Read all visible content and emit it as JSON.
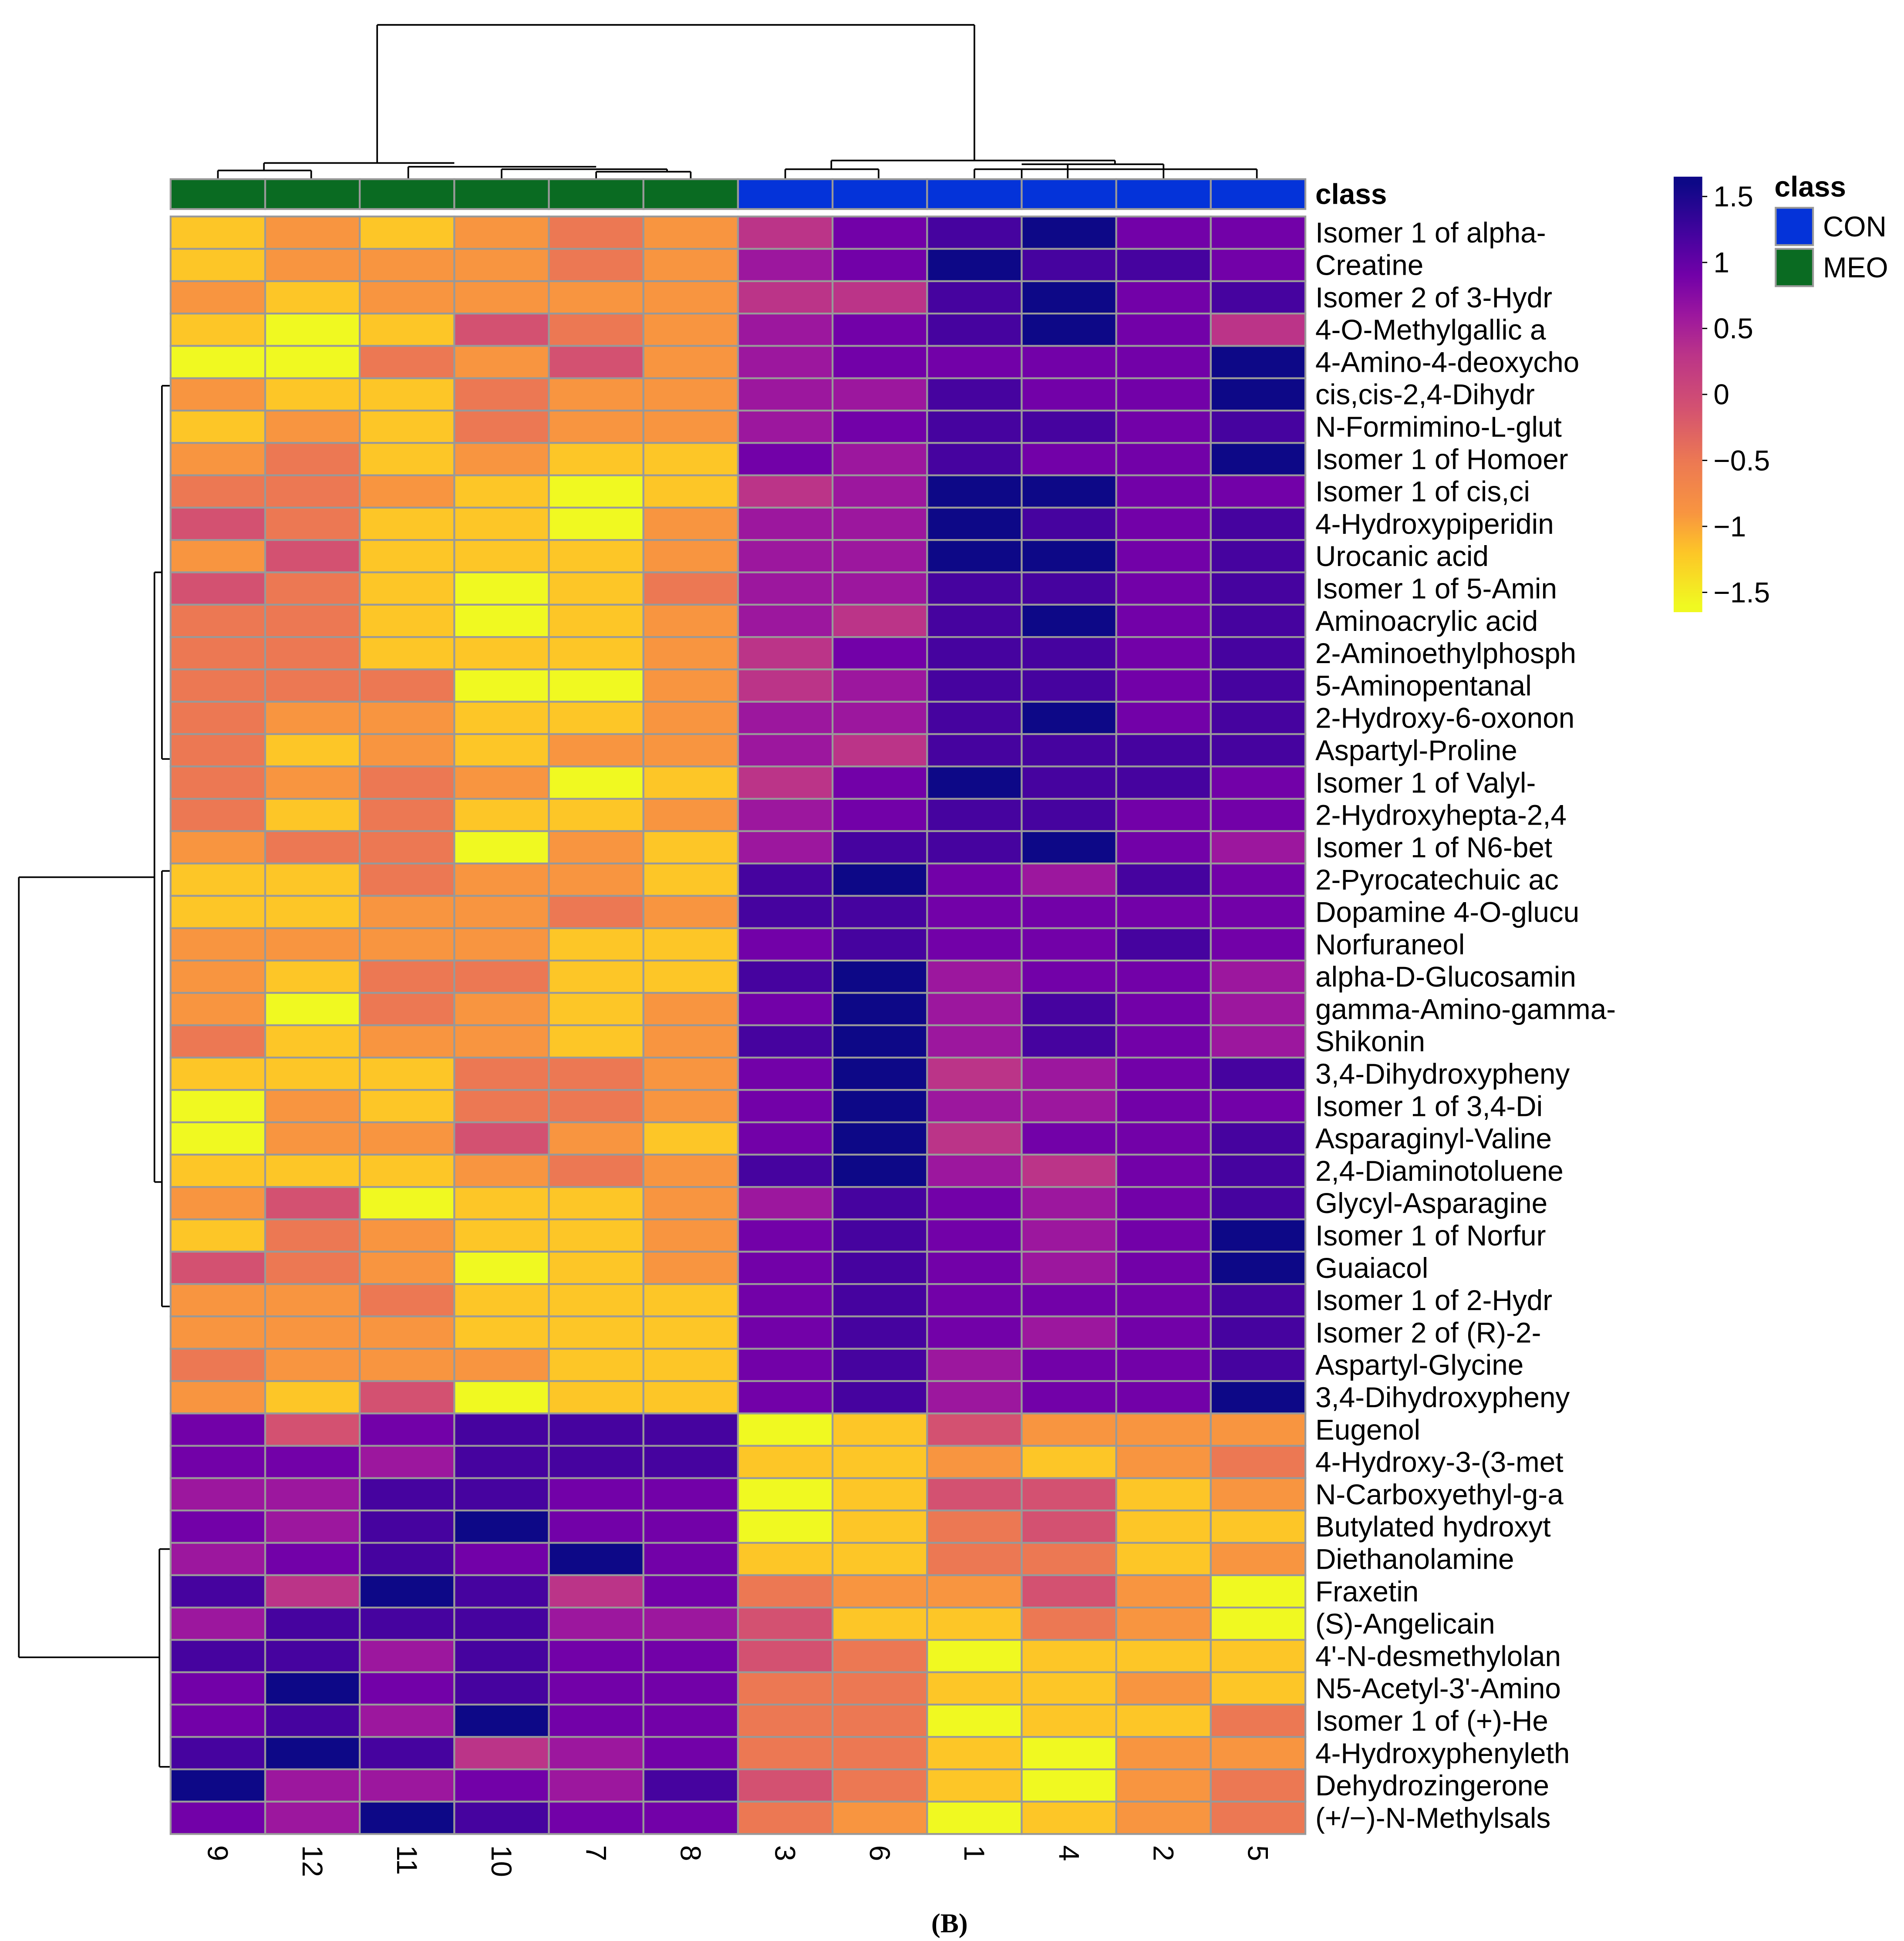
{
  "chart_data": {
    "type": "heatmap",
    "caption": "(B)",
    "columns": [
      "9",
      "12",
      "11",
      "10",
      "7",
      "8",
      "3",
      "6",
      "1",
      "4",
      "2",
      "5"
    ],
    "column_class": [
      "MEO",
      "MEO",
      "MEO",
      "MEO",
      "MEO",
      "MEO",
      "CON",
      "CON",
      "CON",
      "CON",
      "CON",
      "CON"
    ],
    "class_annotation_label": "class",
    "class_legend": {
      "title": "class",
      "entries": [
        {
          "name": "CON",
          "color": "#0433d9"
        },
        {
          "name": "MEO",
          "color": "#0a6b22"
        }
      ]
    },
    "colorbar": {
      "ticks": [
        "1.5",
        "1",
        "0.5",
        "0",
        "−0.5",
        "−1",
        "−1.5"
      ],
      "tick_values": [
        1.5,
        1,
        0.5,
        0,
        -0.5,
        -1,
        -1.5
      ],
      "range": [
        -1.65,
        1.65
      ],
      "stops": [
        {
          "v": -1.6,
          "color": "#f0f921"
        },
        {
          "v": -1.2,
          "color": "#fdc627"
        },
        {
          "v": -0.9,
          "color": "#f89540"
        },
        {
          "v": -0.5,
          "color": "#ec7853"
        },
        {
          "v": -0.1,
          "color": "#d35171"
        },
        {
          "v": 0.3,
          "color": "#bb3488"
        },
        {
          "v": 0.6,
          "color": "#9c179e"
        },
        {
          "v": 0.9,
          "color": "#7201a8"
        },
        {
          "v": 1.2,
          "color": "#46039f"
        },
        {
          "v": 1.6,
          "color": "#0d0887"
        }
      ]
    },
    "rows": [
      {
        "name": "Isomer 1 of alpha-",
        "values": [
          -1.2,
          -0.9,
          -1.2,
          -0.9,
          -0.5,
          -0.9,
          0.3,
          0.9,
          1.2,
          1.6,
          0.9,
          0.9
        ]
      },
      {
        "name": "Creatine",
        "values": [
          -1.2,
          -0.9,
          -0.9,
          -0.9,
          -0.5,
          -0.9,
          0.6,
          0.9,
          1.6,
          1.2,
          1.2,
          0.9
        ]
      },
      {
        "name": "Isomer 2 of 3-Hydr",
        "values": [
          -0.9,
          -1.2,
          -0.9,
          -0.9,
          -0.9,
          -0.9,
          0.3,
          0.3,
          1.2,
          1.6,
          0.9,
          1.2
        ]
      },
      {
        "name": "4-O-Methylgallic a",
        "values": [
          -1.2,
          -1.6,
          -1.2,
          -0.1,
          -0.5,
          -0.9,
          0.6,
          0.9,
          1.2,
          1.6,
          0.9,
          0.3
        ]
      },
      {
        "name": "4-Amino-4-deoxycho",
        "values": [
          -1.6,
          -1.6,
          -0.5,
          -0.9,
          -0.1,
          -0.9,
          0.6,
          0.9,
          0.9,
          0.9,
          0.9,
          1.6
        ]
      },
      {
        "name": "cis,cis-2,4-Dihydr",
        "values": [
          -0.9,
          -1.2,
          -1.2,
          -0.5,
          -0.9,
          -0.9,
          0.6,
          0.6,
          1.2,
          0.9,
          0.9,
          1.6
        ]
      },
      {
        "name": "N-Formimino-L-glut",
        "values": [
          -1.2,
          -0.9,
          -1.2,
          -0.5,
          -0.9,
          -0.9,
          0.6,
          0.9,
          1.2,
          1.2,
          0.9,
          1.2
        ]
      },
      {
        "name": "Isomer 1 of Homoer",
        "values": [
          -0.9,
          -0.5,
          -1.2,
          -0.9,
          -1.2,
          -1.2,
          0.9,
          0.6,
          1.2,
          0.9,
          0.9,
          1.6
        ]
      },
      {
        "name": "Isomer 1 of cis,ci",
        "values": [
          -0.5,
          -0.5,
          -0.9,
          -1.2,
          -1.6,
          -1.2,
          0.3,
          0.6,
          1.6,
          1.6,
          0.9,
          0.9
        ]
      },
      {
        "name": "4-Hydroxypiperidin",
        "values": [
          -0.1,
          -0.5,
          -1.2,
          -1.2,
          -1.6,
          -0.9,
          0.6,
          0.6,
          1.6,
          1.2,
          0.9,
          1.2
        ]
      },
      {
        "name": "Urocanic acid",
        "values": [
          -0.9,
          -0.1,
          -1.2,
          -1.2,
          -1.2,
          -0.9,
          0.6,
          0.6,
          1.6,
          1.6,
          0.9,
          1.2
        ]
      },
      {
        "name": "Isomer 1 of 5-Amin",
        "values": [
          -0.1,
          -0.5,
          -1.2,
          -1.6,
          -1.2,
          -0.5,
          0.6,
          0.6,
          1.2,
          1.2,
          0.9,
          1.2
        ]
      },
      {
        "name": "Aminoacrylic acid",
        "values": [
          -0.5,
          -0.5,
          -1.2,
          -1.6,
          -1.2,
          -0.9,
          0.6,
          0.3,
          1.2,
          1.6,
          0.9,
          1.2
        ]
      },
      {
        "name": "2-Aminoethylphosph",
        "values": [
          -0.5,
          -0.5,
          -1.2,
          -1.2,
          -1.2,
          -0.9,
          0.3,
          0.9,
          1.2,
          1.2,
          0.9,
          1.2
        ]
      },
      {
        "name": "5-Aminopentanal",
        "values": [
          -0.5,
          -0.5,
          -0.5,
          -1.6,
          -1.6,
          -0.9,
          0.3,
          0.6,
          1.2,
          1.2,
          0.9,
          1.2
        ]
      },
      {
        "name": "2-Hydroxy-6-oxonon",
        "values": [
          -0.5,
          -0.9,
          -0.9,
          -1.2,
          -1.2,
          -0.9,
          0.6,
          0.6,
          1.2,
          1.6,
          0.9,
          1.2
        ]
      },
      {
        "name": "Aspartyl-Proline",
        "values": [
          -0.5,
          -1.2,
          -0.9,
          -1.2,
          -0.9,
          -0.9,
          0.6,
          0.3,
          1.2,
          1.2,
          1.2,
          1.2
        ]
      },
      {
        "name": "Isomer 1 of Valyl-",
        "values": [
          -0.5,
          -0.9,
          -0.5,
          -0.9,
          -1.6,
          -1.2,
          0.3,
          0.9,
          1.6,
          1.2,
          1.2,
          0.9
        ]
      },
      {
        "name": "2-Hydroxyhepta-2,4",
        "values": [
          -0.5,
          -1.2,
          -0.5,
          -1.2,
          -1.2,
          -0.9,
          0.6,
          0.9,
          1.2,
          1.2,
          0.9,
          0.9
        ]
      },
      {
        "name": "Isomer 1 of N6-bet",
        "values": [
          -0.9,
          -0.5,
          -0.5,
          -1.6,
          -0.9,
          -1.2,
          0.6,
          1.2,
          1.2,
          1.6,
          0.9,
          0.6
        ]
      },
      {
        "name": "2-Pyrocatechuic ac",
        "values": [
          -1.2,
          -1.2,
          -0.5,
          -0.9,
          -0.9,
          -1.2,
          1.2,
          1.6,
          0.9,
          0.6,
          1.2,
          0.9
        ]
      },
      {
        "name": "Dopamine 4-O-glucu",
        "values": [
          -1.2,
          -1.2,
          -0.9,
          -0.9,
          -0.5,
          -0.9,
          1.2,
          1.2,
          0.9,
          0.9,
          0.9,
          0.9
        ]
      },
      {
        "name": "Norfuraneol",
        "values": [
          -0.9,
          -0.9,
          -0.9,
          -0.9,
          -1.2,
          -1.2,
          0.9,
          1.2,
          0.9,
          0.9,
          1.2,
          0.9
        ]
      },
      {
        "name": "alpha-D-Glucosamin",
        "values": [
          -0.9,
          -1.2,
          -0.5,
          -0.5,
          -1.2,
          -1.2,
          1.2,
          1.6,
          0.6,
          0.9,
          0.9,
          0.6
        ]
      },
      {
        "name": "gamma-Amino-gamma-",
        "values": [
          -0.9,
          -1.6,
          -0.5,
          -0.9,
          -1.2,
          -0.9,
          0.9,
          1.6,
          0.6,
          1.2,
          0.9,
          0.6
        ]
      },
      {
        "name": "Shikonin",
        "values": [
          -0.5,
          -1.2,
          -0.9,
          -0.9,
          -1.2,
          -0.9,
          1.2,
          1.6,
          0.6,
          1.2,
          0.9,
          0.6
        ]
      },
      {
        "name": "3,4-Dihydroxypheny",
        "values": [
          -1.2,
          -1.2,
          -1.2,
          -0.5,
          -0.5,
          -0.9,
          0.9,
          1.6,
          0.3,
          0.6,
          0.9,
          1.2
        ]
      },
      {
        "name": "Isomer 1 of 3,4-Di",
        "values": [
          -1.6,
          -0.9,
          -1.2,
          -0.5,
          -0.5,
          -0.9,
          0.9,
          1.6,
          0.6,
          0.6,
          0.9,
          0.9
        ]
      },
      {
        "name": "Asparaginyl-Valine",
        "values": [
          -1.6,
          -0.9,
          -0.9,
          -0.1,
          -0.9,
          -1.2,
          0.9,
          1.6,
          0.3,
          0.9,
          0.9,
          1.2
        ]
      },
      {
        "name": "2,4-Diaminotoluene",
        "values": [
          -1.2,
          -1.2,
          -1.2,
          -0.9,
          -0.5,
          -0.9,
          1.2,
          1.6,
          0.6,
          0.3,
          0.9,
          1.2
        ]
      },
      {
        "name": "Glycyl-Asparagine",
        "values": [
          -0.9,
          -0.1,
          -1.6,
          -1.2,
          -1.2,
          -0.9,
          0.6,
          1.2,
          0.9,
          0.6,
          0.9,
          1.2
        ]
      },
      {
        "name": "Isomer 1 of Norfur",
        "values": [
          -1.2,
          -0.5,
          -0.9,
          -1.2,
          -1.2,
          -0.9,
          0.9,
          1.2,
          0.9,
          0.6,
          0.9,
          1.6
        ]
      },
      {
        "name": "Guaiacol",
        "values": [
          -0.1,
          -0.5,
          -0.9,
          -1.6,
          -1.2,
          -0.9,
          0.9,
          1.2,
          0.9,
          0.6,
          0.9,
          1.6
        ]
      },
      {
        "name": "Isomer 1 of 2-Hydr",
        "values": [
          -0.9,
          -0.9,
          -0.5,
          -1.2,
          -1.2,
          -1.2,
          0.9,
          1.2,
          0.9,
          0.9,
          0.9,
          1.2
        ]
      },
      {
        "name": "Isomer 2 of (R)-2-",
        "values": [
          -0.9,
          -0.9,
          -0.9,
          -1.2,
          -1.2,
          -1.2,
          0.9,
          1.2,
          0.9,
          0.6,
          0.9,
          1.2
        ]
      },
      {
        "name": "Aspartyl-Glycine",
        "values": [
          -0.5,
          -0.9,
          -0.9,
          -0.9,
          -1.2,
          -1.2,
          0.9,
          1.2,
          0.6,
          0.9,
          0.9,
          1.2
        ]
      },
      {
        "name": "3,4-Dihydroxypheny",
        "values": [
          -0.9,
          -1.2,
          -0.1,
          -1.6,
          -1.2,
          -1.2,
          0.9,
          1.2,
          0.6,
          0.9,
          0.9,
          1.6
        ]
      },
      {
        "name": "Eugenol",
        "values": [
          0.9,
          -0.1,
          0.9,
          1.2,
          1.2,
          1.2,
          -1.6,
          -1.2,
          -0.1,
          -0.9,
          -0.9,
          -0.9
        ]
      },
      {
        "name": "4-Hydroxy-3-(3-met",
        "values": [
          0.9,
          0.9,
          0.6,
          1.2,
          1.2,
          1.2,
          -1.2,
          -1.2,
          -0.9,
          -1.2,
          -0.9,
          -0.5
        ]
      },
      {
        "name": "N-Carboxyethyl-g-a",
        "values": [
          0.6,
          0.6,
          1.2,
          1.2,
          0.9,
          0.9,
          -1.6,
          -1.2,
          -0.1,
          -0.1,
          -1.2,
          -0.9
        ]
      },
      {
        "name": "Butylated hydroxyt",
        "values": [
          0.9,
          0.6,
          1.2,
          1.6,
          0.9,
          0.9,
          -1.6,
          -1.2,
          -0.5,
          -0.1,
          -1.2,
          -1.2
        ]
      },
      {
        "name": "Diethanolamine",
        "values": [
          0.6,
          0.9,
          1.2,
          0.9,
          1.6,
          0.9,
          -1.2,
          -1.2,
          -0.5,
          -0.5,
          -1.2,
          -0.9
        ]
      },
      {
        "name": "Fraxetin",
        "values": [
          1.2,
          0.3,
          1.6,
          1.2,
          0.3,
          0.9,
          -0.5,
          -0.9,
          -0.9,
          -0.1,
          -0.9,
          -1.6
        ]
      },
      {
        "name": "(S)-Angelicain",
        "values": [
          0.6,
          1.2,
          1.2,
          1.2,
          0.6,
          0.6,
          -0.1,
          -1.2,
          -1.2,
          -0.5,
          -0.9,
          -1.6
        ]
      },
      {
        "name": "4'-N-desmethylolan",
        "values": [
          1.2,
          1.2,
          0.6,
          1.2,
          0.9,
          0.9,
          -0.1,
          -0.5,
          -1.6,
          -1.2,
          -1.2,
          -1.2
        ]
      },
      {
        "name": "N5-Acetyl-3'-Amino",
        "values": [
          0.9,
          1.6,
          0.9,
          1.2,
          0.9,
          0.9,
          -0.5,
          -0.5,
          -1.2,
          -1.2,
          -0.9,
          -1.2
        ]
      },
      {
        "name": "Isomer 1 of (+)-He",
        "values": [
          0.9,
          1.2,
          0.6,
          1.6,
          0.9,
          0.9,
          -0.5,
          -0.5,
          -1.6,
          -1.2,
          -1.2,
          -0.5
        ]
      },
      {
        "name": "4-Hydroxyphenyleth",
        "values": [
          1.2,
          1.6,
          1.2,
          0.3,
          0.6,
          0.9,
          -0.5,
          -0.5,
          -1.2,
          -1.6,
          -0.9,
          -0.9
        ]
      },
      {
        "name": "Dehydrozingerone",
        "values": [
          1.6,
          0.6,
          0.6,
          0.9,
          0.6,
          1.2,
          -0.1,
          -0.5,
          -1.2,
          -1.6,
          -0.9,
          -0.5
        ]
      },
      {
        "name": "(+/−)-N-Methylsals",
        "values": [
          0.9,
          0.6,
          1.6,
          1.2,
          0.9,
          0.9,
          -0.5,
          -0.9,
          -1.6,
          -1.2,
          -0.9,
          -0.5
        ]
      }
    ]
  }
}
